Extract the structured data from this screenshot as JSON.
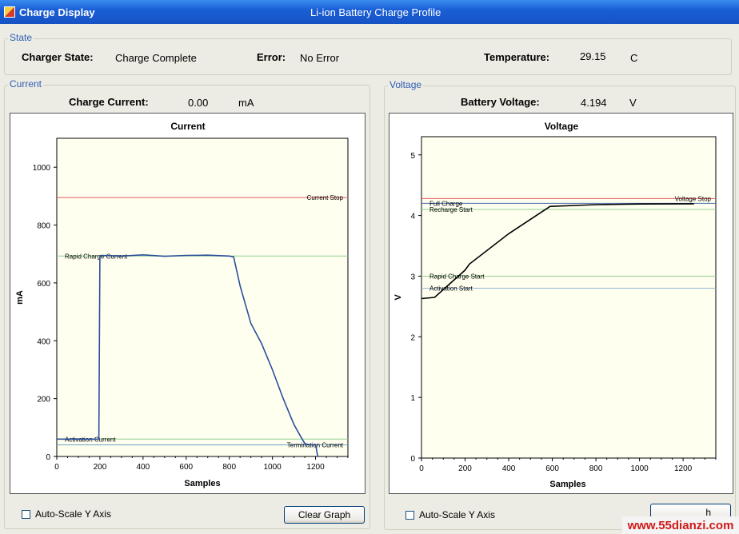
{
  "window": {
    "title": "Charge Display",
    "subtitle": "Li-ion Battery Charge Profile"
  },
  "state": {
    "legend": "State",
    "charger_state_label": "Charger State:",
    "charger_state_value": "Charge Complete",
    "error_label": "Error:",
    "error_value": "No Error",
    "temperature_label": "Temperature:",
    "temperature_value": "29.15",
    "temperature_unit": "C"
  },
  "current_panel": {
    "legend": "Current",
    "readout_label": "Charge Current:",
    "readout_value": "0.00",
    "readout_unit": "mA",
    "auto_scale_label": "Auto-Scale Y Axis",
    "clear_button": "Clear Graph"
  },
  "voltage_panel": {
    "legend": "Voltage",
    "readout_label": "Battery Voltage:",
    "readout_value": "4.194",
    "readout_unit": "V",
    "auto_scale_label": "Auto-Scale Y Axis",
    "button_partial": "h"
  },
  "watermark": "www.55dianzi.com",
  "colors": {
    "titlebar": "#1a5fd6",
    "trace": "#2a4f9a",
    "voltage_trace": "#000000",
    "plot_bg": "#fffff0"
  },
  "chart_data": [
    {
      "type": "line",
      "title": "Current",
      "xlabel": "Samples",
      "ylabel": "mA",
      "xlim": [
        0,
        1350
      ],
      "ylim": [
        0,
        1100
      ],
      "xticks": [
        0,
        200,
        400,
        600,
        800,
        1000,
        1200
      ],
      "yticks": [
        0,
        200,
        400,
        600,
        800,
        1000
      ],
      "grid": false,
      "thresholds": [
        {
          "name": "Current Stop",
          "value": 895,
          "color": "#e05a5a",
          "label_side": "right"
        },
        {
          "name": "Rapid Charge Current",
          "value": 693,
          "color": "#8fd08f",
          "label_side": "left"
        },
        {
          "name": "Activation Current",
          "value": 60,
          "color": "#8fd08f",
          "label_side": "left"
        },
        {
          "name": "Termination Current",
          "value": 40,
          "color": "#6aa0c8",
          "label_side": "right"
        }
      ],
      "series": [
        {
          "x": [
            0,
            195,
            197,
            200,
            205,
            300,
            400,
            500,
            600,
            700,
            800,
            820,
            850,
            900,
            950,
            1000,
            1050,
            1100,
            1130,
            1150,
            1170,
            1190,
            1200,
            1210,
            1215
          ],
          "y": [
            60,
            60,
            300,
            690,
            695,
            693,
            697,
            692,
            695,
            696,
            693,
            690,
            590,
            460,
            390,
            300,
            200,
            110,
            70,
            45,
            40,
            40,
            40,
            0,
            0
          ]
        }
      ]
    },
    {
      "type": "line",
      "title": "Voltage",
      "xlabel": "Samples",
      "ylabel": "V",
      "xlim": [
        0,
        1350
      ],
      "ylim": [
        0,
        5.3
      ],
      "xticks": [
        0,
        200,
        400,
        600,
        800,
        1000,
        1200
      ],
      "yticks": [
        0,
        1,
        2,
        3,
        4,
        5
      ],
      "grid": false,
      "thresholds": [
        {
          "name": "Voltage Stop",
          "value": 4.28,
          "color": "#e05a5a",
          "label_side": "right"
        },
        {
          "name": "Full Charge",
          "value": 4.2,
          "color": "#4b6fb0",
          "label_side": "left"
        },
        {
          "name": "Recharge Start",
          "value": 4.1,
          "color": "#8fd08f",
          "label_side": "left"
        },
        {
          "name": "Rapid Charge Start",
          "value": 3.0,
          "color": "#8fd08f",
          "label_side": "left"
        },
        {
          "name": "Activation Start",
          "value": 2.8,
          "color": "#8fb4d0",
          "label_side": "left"
        }
      ],
      "series": [
        {
          "x": [
            0,
            60,
            200,
            220,
            400,
            590,
            800,
            1000,
            1250
          ],
          "y": [
            2.63,
            2.65,
            3.1,
            3.2,
            3.7,
            4.15,
            4.18,
            4.19,
            4.194
          ]
        }
      ]
    }
  ]
}
